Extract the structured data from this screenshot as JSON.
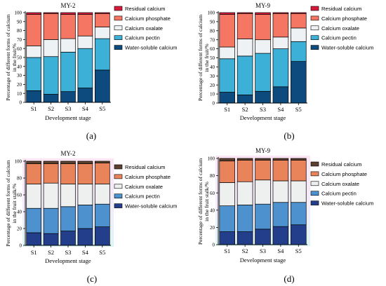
{
  "chart_data": [
    {
      "type": "bar",
      "title": "MY-2",
      "panel_label": "(a)",
      "xlabel": "Development stage",
      "ylabel_lines": [
        "Percentage of different forms of calcium",
        "in the fruit/%"
      ],
      "categories": [
        "S1",
        "S2",
        "S3",
        "S4",
        "S5"
      ],
      "ylim": [
        0,
        100
      ],
      "yticks": [
        "0",
        "10",
        "20",
        "30",
        "40",
        "50",
        "60",
        "70",
        "80",
        "90",
        "100"
      ],
      "legend_placement": "right",
      "series": [
        {
          "name": "Water-soluble calcium",
          "color": "#0d4a7e",
          "values": [
            13,
            9,
            12,
            16,
            36
          ]
        },
        {
          "name": "Calcium pectin",
          "color": "#3db0d8",
          "values": [
            37,
            42,
            44,
            44,
            35
          ]
        },
        {
          "name": "Calcium oxalate",
          "color": "#eef2f4",
          "values": [
            13,
            19,
            15,
            14,
            13
          ]
        },
        {
          "name": "Calcium phosphate",
          "color": "#f47663",
          "values": [
            35,
            29,
            27,
            24,
            15
          ]
        },
        {
          "name": "Residual calcium",
          "color": "#d81b3a",
          "values": [
            2,
            1,
            2,
            2,
            1
          ]
        }
      ]
    },
    {
      "type": "bar",
      "title": "MY-9",
      "panel_label": "(b)",
      "xlabel": "Development stage",
      "ylabel_lines": [
        "Percentage of different forms of calcium",
        "in the fruit/%"
      ],
      "categories": [
        "S1",
        "S2",
        "S3",
        "S4",
        "S5"
      ],
      "ylim": [
        0,
        100
      ],
      "yticks": [
        "0",
        "10",
        "20",
        "30",
        "40",
        "50",
        "60",
        "70",
        "80",
        "90",
        "100"
      ],
      "legend_placement": "right",
      "series": [
        {
          "name": "Water-soluble calcium",
          "color": "#0d4a7e",
          "values": [
            12,
            9,
            13,
            18,
            46
          ]
        },
        {
          "name": "Calcium pectin",
          "color": "#3db0d8",
          "values": [
            37,
            43,
            42,
            42,
            22
          ]
        },
        {
          "name": "Calcium oxalate",
          "color": "#eef2f4",
          "values": [
            13,
            19,
            15,
            13,
            15
          ]
        },
        {
          "name": "Calcium phosphate",
          "color": "#f47663",
          "values": [
            36,
            28,
            28,
            26,
            16
          ]
        },
        {
          "name": "Residual calcium",
          "color": "#d81b3a",
          "values": [
            2,
            1,
            2,
            1,
            1
          ]
        }
      ]
    },
    {
      "type": "bar",
      "title": "MY-2",
      "panel_label": "(c)",
      "xlabel": "Development stage",
      "ylabel_lines": [
        "Percentage of different forms of calcium",
        "in the fruit stalk/%"
      ],
      "categories": [
        "S1",
        "S2",
        "S3",
        "S4",
        "S5"
      ],
      "ylim": [
        0,
        100
      ],
      "yticks": [
        "0",
        "20",
        "40",
        "60",
        "80",
        "100"
      ],
      "legend_placement": "right",
      "series": [
        {
          "name": "Water-soluble calcium",
          "color": "#233f8c",
          "values": [
            15,
            14,
            17,
            20,
            22
          ]
        },
        {
          "name": "Calcium pectin",
          "color": "#4d92cf",
          "values": [
            29,
            30,
            29,
            28,
            27
          ]
        },
        {
          "name": "Calcium oxalate",
          "color": "#eef0f0",
          "values": [
            29,
            30,
            27,
            25,
            24
          ]
        },
        {
          "name": "Calcium phosphate",
          "color": "#e8835a",
          "values": [
            24,
            23,
            24,
            24,
            25
          ]
        },
        {
          "name": "Residual calcium",
          "color": "#5c4030",
          "values": [
            3,
            3,
            3,
            3,
            2
          ]
        }
      ]
    },
    {
      "type": "bar",
      "title": "MY-9",
      "panel_label": "(d)",
      "xlabel": "Development stage",
      "ylabel_lines": [
        "Percentage of different forms of calcium",
        "in the fruit stalk/%"
      ],
      "categories": [
        "S1",
        "S2",
        "S3",
        "S4",
        "S5"
      ],
      "ylim": [
        0,
        100
      ],
      "yticks": [
        "0",
        "20",
        "40",
        "60",
        "80",
        "100"
      ],
      "legend_placement": "right",
      "series": [
        {
          "name": "Water-soluble calcium",
          "color": "#233f8c",
          "values": [
            15,
            15,
            18,
            21,
            23
          ]
        },
        {
          "name": "Calcium pectin",
          "color": "#4d92cf",
          "values": [
            30,
            31,
            29,
            28,
            26
          ]
        },
        {
          "name": "Calcium oxalate",
          "color": "#eef0f0",
          "values": [
            27,
            27,
            28,
            25,
            25
          ]
        },
        {
          "name": "Calcium phosphate",
          "color": "#e8835a",
          "values": [
            25,
            25,
            23,
            24,
            24
          ]
        },
        {
          "name": "Residual calcium",
          "color": "#5c4030",
          "values": [
            3,
            2,
            2,
            2,
            2
          ]
        }
      ]
    }
  ]
}
